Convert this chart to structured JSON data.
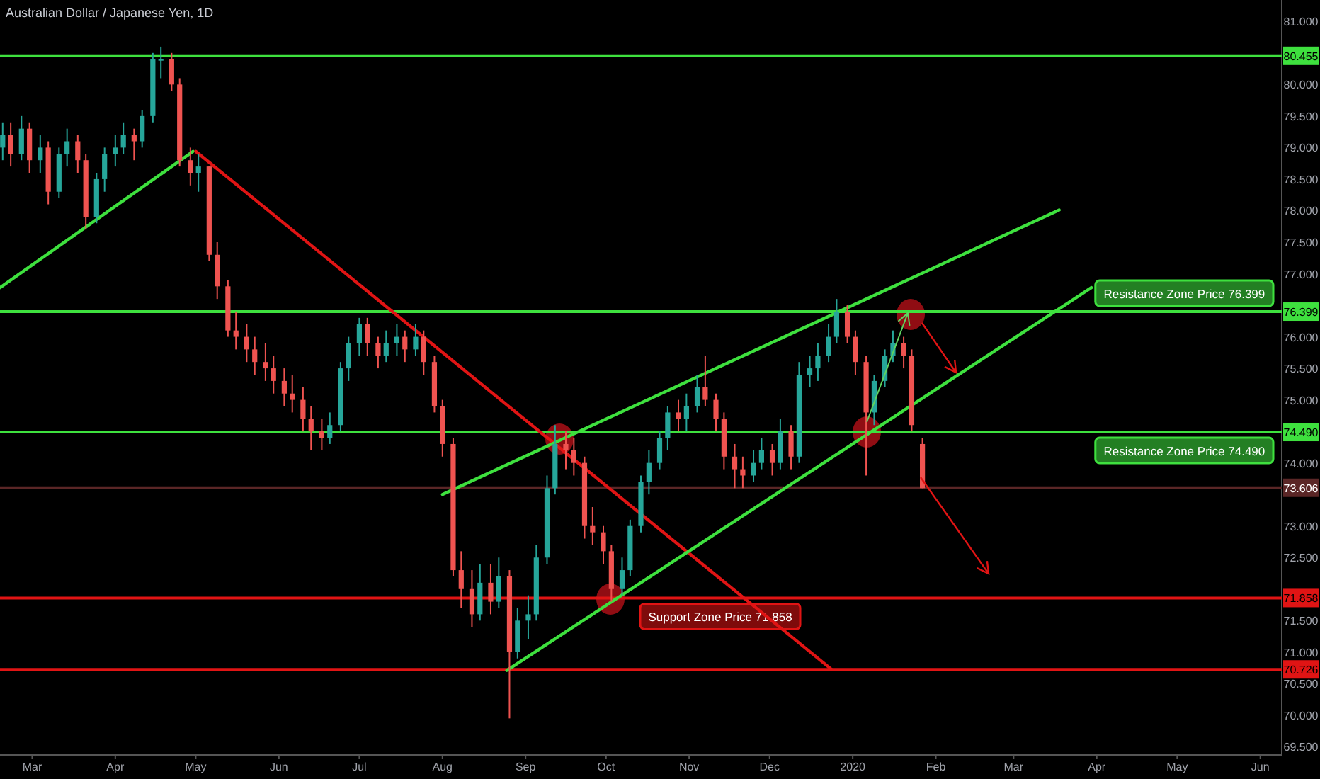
{
  "chart_data": {
    "type": "candlestick",
    "title": "Australian Dollar / Japanese Yen, 1D",
    "x": [
      "2019-02-18",
      "2019-02-21",
      "2019-02-25",
      "2019-02-28",
      "2019-03-04",
      "2019-03-07",
      "2019-03-11",
      "2019-03-14",
      "2019-03-18",
      "2019-03-21",
      "2019-03-25",
      "2019-03-28",
      "2019-04-01",
      "2019-04-04",
      "2019-04-08",
      "2019-04-11",
      "2019-04-15",
      "2019-04-18",
      "2019-04-22",
      "2019-04-25",
      "2019-04-29",
      "2019-05-02",
      "2019-05-06",
      "2019-05-09",
      "2019-05-13",
      "2019-05-16",
      "2019-05-20",
      "2019-05-23",
      "2019-05-27",
      "2019-05-30",
      "2019-06-03",
      "2019-06-06",
      "2019-06-10",
      "2019-06-13",
      "2019-06-17",
      "2019-06-20",
      "2019-06-24",
      "2019-06-27",
      "2019-07-01",
      "2019-07-04",
      "2019-07-08",
      "2019-07-11",
      "2019-07-15",
      "2019-07-18",
      "2019-07-22",
      "2019-07-25",
      "2019-07-29",
      "2019-08-01",
      "2019-08-05",
      "2019-08-08",
      "2019-08-12",
      "2019-08-15",
      "2019-08-19",
      "2019-08-22",
      "2019-08-26",
      "2019-08-29",
      "2019-09-02",
      "2019-09-05",
      "2019-09-09",
      "2019-09-12",
      "2019-09-16",
      "2019-09-19",
      "2019-09-23",
      "2019-09-26",
      "2019-09-30",
      "2019-10-03",
      "2019-10-07",
      "2019-10-10",
      "2019-10-14",
      "2019-10-17",
      "2019-10-21",
      "2019-10-24",
      "2019-10-28",
      "2019-10-31",
      "2019-11-04",
      "2019-11-07",
      "2019-11-11",
      "2019-11-14",
      "2019-11-18",
      "2019-11-21",
      "2019-11-25",
      "2019-11-28",
      "2019-12-02",
      "2019-12-05",
      "2019-12-09",
      "2019-12-12",
      "2019-12-16",
      "2019-12-19",
      "2019-12-23",
      "2019-12-26",
      "2019-12-30",
      "2020-01-02",
      "2020-01-06",
      "2020-01-09",
      "2020-01-13",
      "2020-01-16",
      "2020-01-20",
      "2020-01-23",
      "2020-01-27"
    ],
    "ohlc": [
      [
        79.0,
        79.4,
        78.8,
        79.2
      ],
      [
        79.2,
        79.4,
        78.7,
        78.9
      ],
      [
        78.9,
        79.5,
        78.8,
        79.3
      ],
      [
        79.3,
        79.4,
        78.6,
        78.8
      ],
      [
        78.8,
        79.2,
        78.6,
        79.0
      ],
      [
        79.0,
        79.1,
        78.1,
        78.3
      ],
      [
        78.3,
        79.0,
        78.2,
        78.9
      ],
      [
        78.9,
        79.3,
        78.7,
        79.1
      ],
      [
        79.1,
        79.2,
        78.6,
        78.8
      ],
      [
        78.8,
        78.9,
        77.7,
        77.9
      ],
      [
        77.9,
        78.6,
        77.8,
        78.5
      ],
      [
        78.5,
        79.0,
        78.3,
        78.9
      ],
      [
        78.9,
        79.2,
        78.7,
        79.0
      ],
      [
        79.0,
        79.4,
        78.9,
        79.2
      ],
      [
        79.2,
        79.3,
        78.8,
        79.1
      ],
      [
        79.1,
        79.6,
        79.0,
        79.5
      ],
      [
        79.5,
        80.5,
        79.4,
        80.4
      ],
      [
        80.4,
        80.6,
        80.1,
        80.4
      ],
      [
        80.4,
        80.5,
        79.9,
        80.0
      ],
      [
        80.0,
        80.1,
        78.7,
        78.8
      ],
      [
        78.8,
        79.0,
        78.4,
        78.6
      ],
      [
        78.6,
        78.9,
        78.3,
        78.7
      ],
      [
        78.7,
        78.7,
        77.2,
        77.3
      ],
      [
        77.3,
        77.5,
        76.6,
        76.8
      ],
      [
        76.8,
        76.9,
        76.0,
        76.1
      ],
      [
        76.1,
        76.4,
        75.8,
        76.0
      ],
      [
        76.0,
        76.2,
        75.6,
        75.8
      ],
      [
        75.8,
        76.0,
        75.4,
        75.6
      ],
      [
        75.6,
        75.9,
        75.3,
        75.5
      ],
      [
        75.5,
        75.7,
        75.1,
        75.3
      ],
      [
        75.3,
        75.5,
        74.9,
        75.1
      ],
      [
        75.1,
        75.4,
        74.8,
        75.0
      ],
      [
        75.0,
        75.2,
        74.5,
        74.7
      ],
      [
        74.7,
        74.9,
        74.2,
        74.5
      ],
      [
        74.5,
        74.7,
        74.2,
        74.4
      ],
      [
        74.4,
        74.8,
        74.3,
        74.6
      ],
      [
        74.6,
        75.6,
        74.5,
        75.5
      ],
      [
        75.5,
        76.0,
        75.3,
        75.9
      ],
      [
        75.9,
        76.3,
        75.7,
        76.2
      ],
      [
        76.2,
        76.3,
        75.7,
        75.9
      ],
      [
        75.9,
        76.0,
        75.5,
        75.7
      ],
      [
        75.7,
        76.1,
        75.6,
        75.9
      ],
      [
        75.9,
        76.2,
        75.7,
        76.0
      ],
      [
        76.0,
        76.1,
        75.6,
        75.8
      ],
      [
        75.8,
        76.2,
        75.7,
        76.0
      ],
      [
        76.0,
        76.1,
        75.4,
        75.6
      ],
      [
        75.6,
        75.7,
        74.8,
        74.9
      ],
      [
        74.9,
        75.0,
        74.1,
        74.3
      ],
      [
        74.3,
        74.4,
        72.2,
        72.3
      ],
      [
        72.3,
        72.6,
        71.7,
        72.0
      ],
      [
        72.0,
        72.3,
        71.4,
        71.6
      ],
      [
        71.6,
        72.4,
        71.5,
        72.1
      ],
      [
        72.1,
        72.4,
        71.6,
        71.8
      ],
      [
        71.8,
        72.5,
        71.7,
        72.2
      ],
      [
        72.2,
        72.3,
        69.95,
        71.0
      ],
      [
        71.0,
        71.7,
        70.9,
        71.5
      ],
      [
        71.5,
        71.9,
        71.2,
        71.6
      ],
      [
        71.6,
        72.7,
        71.5,
        72.5
      ],
      [
        72.5,
        73.8,
        72.4,
        73.6
      ],
      [
        73.6,
        74.6,
        73.5,
        74.3
      ],
      [
        74.3,
        74.5,
        73.9,
        74.2
      ],
      [
        74.2,
        74.4,
        73.8,
        74.0
      ],
      [
        74.0,
        74.1,
        72.8,
        73.0
      ],
      [
        73.0,
        73.3,
        72.7,
        72.9
      ],
      [
        72.9,
        73.0,
        72.4,
        72.6
      ],
      [
        72.6,
        72.7,
        71.8,
        72.0
      ],
      [
        72.0,
        72.5,
        71.9,
        72.3
      ],
      [
        72.3,
        73.1,
        72.2,
        73.0
      ],
      [
        73.0,
        73.8,
        72.9,
        73.7
      ],
      [
        73.7,
        74.2,
        73.5,
        74.0
      ],
      [
        74.0,
        74.5,
        73.9,
        74.4
      ],
      [
        74.4,
        74.9,
        74.2,
        74.8
      ],
      [
        74.8,
        75.0,
        74.5,
        74.7
      ],
      [
        74.7,
        75.1,
        74.5,
        74.9
      ],
      [
        74.9,
        75.4,
        74.8,
        75.2
      ],
      [
        75.2,
        75.7,
        74.9,
        75.0
      ],
      [
        75.0,
        75.1,
        74.5,
        74.7
      ],
      [
        74.7,
        74.8,
        73.9,
        74.1
      ],
      [
        74.1,
        74.3,
        73.6,
        73.9
      ],
      [
        73.9,
        74.1,
        73.6,
        73.8
      ],
      [
        73.8,
        74.2,
        73.7,
        74.0
      ],
      [
        74.0,
        74.4,
        73.9,
        74.2
      ],
      [
        74.2,
        74.3,
        73.8,
        74.0
      ],
      [
        74.0,
        74.7,
        73.9,
        74.5
      ],
      [
        74.5,
        74.6,
        73.9,
        74.1
      ],
      [
        74.1,
        75.6,
        74.0,
        75.4
      ],
      [
        75.4,
        75.7,
        75.2,
        75.5
      ],
      [
        75.5,
        75.9,
        75.3,
        75.7
      ],
      [
        75.7,
        76.2,
        75.6,
        76.0
      ],
      [
        76.0,
        76.6,
        75.9,
        76.4
      ],
      [
        76.4,
        76.5,
        75.9,
        76.0
      ],
      [
        76.0,
        76.1,
        75.4,
        75.6
      ],
      [
        75.6,
        75.7,
        73.8,
        74.8
      ],
      [
        74.8,
        75.4,
        74.6,
        75.3
      ],
      [
        75.3,
        75.8,
        75.2,
        75.7
      ],
      [
        75.7,
        76.1,
        75.6,
        75.9
      ],
      [
        75.9,
        76.0,
        75.5,
        75.7
      ],
      [
        75.7,
        75.8,
        74.5,
        74.6
      ],
      [
        74.3,
        74.4,
        73.6,
        73.6
      ]
    ],
    "series": [
      {
        "type": "line",
        "color": "#3ee03e",
        "x": [
          "2019-02-17",
          "2019-04-30"
        ],
        "values": [
          76.78,
          78.94
        ]
      },
      {
        "type": "line",
        "color": "#e01414",
        "x": [
          "2019-05-01",
          "2019-12-24"
        ],
        "values": [
          78.94,
          70.73
        ]
      },
      {
        "type": "line",
        "color": "#3ee03e",
        "x": [
          "2019-08-01",
          "2020-03-18"
        ],
        "values": [
          73.5,
          78.01
        ]
      },
      {
        "type": "line",
        "color": "#3ee03e",
        "x": [
          "2019-08-25",
          "2020-03-30"
        ],
        "values": [
          70.71,
          76.78
        ]
      }
    ],
    "ref_lines": [
      {
        "axis": "y",
        "value": 80.455,
        "color": "#3ee03e"
      },
      {
        "axis": "y",
        "value": 76.399,
        "color": "#3ee03e",
        "label": "Resistance Zone Price 76.399"
      },
      {
        "axis": "y",
        "value": 74.49,
        "color": "#3ee03e",
        "label": "Resistance Zone Price 74.490"
      },
      {
        "axis": "y",
        "value": 73.606,
        "color": "#5a2626"
      },
      {
        "axis": "y",
        "value": 71.858,
        "color": "#e01414",
        "label": "Support Zone Price 71.858"
      },
      {
        "axis": "y",
        "value": 70.726,
        "color": "#e01414"
      }
    ],
    "xlim": [
      "2019-02-17",
      "2020-06-09"
    ],
    "xticks": [
      {
        "value": "2019-03-01",
        "label": "Mar"
      },
      {
        "value": "2019-04-01",
        "label": "Apr"
      },
      {
        "value": "2019-05-01",
        "label": "May"
      },
      {
        "value": "2019-06-01",
        "label": "Jun"
      },
      {
        "value": "2019-07-01",
        "label": "Jul"
      },
      {
        "value": "2019-08-01",
        "label": "Aug"
      },
      {
        "value": "2019-09-01",
        "label": "Sep"
      },
      {
        "value": "2019-10-01",
        "label": "Oct"
      },
      {
        "value": "2019-11-01",
        "label": "Nov"
      },
      {
        "value": "2019-12-01",
        "label": "Dec"
      },
      {
        "value": "2020-01-01",
        "label": "2020"
      },
      {
        "value": "2020-02-01",
        "label": "Feb"
      },
      {
        "value": "2020-03-01",
        "label": "Mar"
      },
      {
        "value": "2020-04-01",
        "label": "Apr"
      },
      {
        "value": "2020-05-01",
        "label": "May"
      },
      {
        "value": "2020-06-01",
        "label": "Jun"
      }
    ],
    "ylim": [
      69.37,
      81.34
    ],
    "yticks": [
      {
        "value": 69.5,
        "label": "69.500"
      },
      {
        "value": 70,
        "label": "70.000"
      },
      {
        "value": 70.5,
        "label": "70.500"
      },
      {
        "value": 71,
        "label": "71.000"
      },
      {
        "value": 71.5,
        "label": "71.500"
      },
      {
        "value": 70.726,
        "label": "70.726"
      },
      {
        "value": 71.858,
        "label": "71.858"
      },
      {
        "value": 72.5,
        "label": "72.500"
      },
      {
        "value": 73,
        "label": "73.000"
      },
      {
        "value": 73.606,
        "label": "73.606"
      },
      {
        "value": 74,
        "label": "74.000"
      },
      {
        "value": 74.49,
        "label": "74.490"
      },
      {
        "value": 75,
        "label": "75.000"
      },
      {
        "value": 75.5,
        "label": "75.500"
      },
      {
        "value": 76,
        "label": "76.000"
      },
      {
        "value": 76.399,
        "label": "76.399"
      },
      {
        "value": 77,
        "label": "77.000"
      },
      {
        "value": 77.5,
        "label": "77.500"
      },
      {
        "value": 78,
        "label": "78.000"
      },
      {
        "value": 78.5,
        "label": "78.500"
      },
      {
        "value": 79,
        "label": "79.000"
      },
      {
        "value": 79.5,
        "label": "79.500"
      },
      {
        "value": 80,
        "label": "80.000"
      },
      {
        "value": 80.455,
        "label": "80.455"
      },
      {
        "value": 81,
        "label": "81.000"
      }
    ]
  }
}
